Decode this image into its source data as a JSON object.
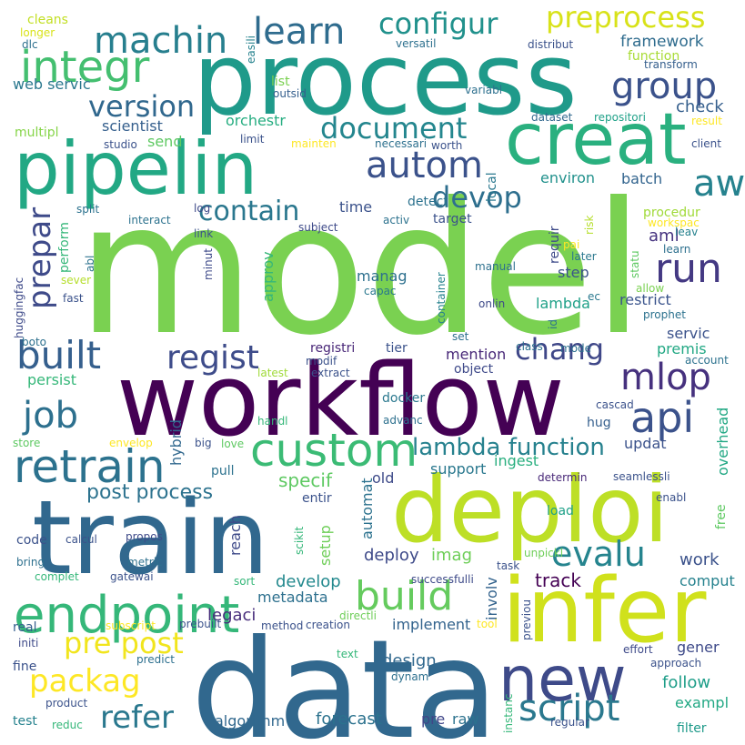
{
  "words": [
    {
      "text": "model",
      "color": "#7ad151"
    },
    {
      "text": "process",
      "color": "#1f9a8a"
    },
    {
      "text": "workflow",
      "color": "#440154"
    },
    {
      "text": "data",
      "color": "#31688e"
    },
    {
      "text": "train",
      "color": "#31688e"
    },
    {
      "text": "deploi",
      "color": "#bddf26"
    },
    {
      "text": "infer",
      "color": "#d0e11c"
    },
    {
      "text": "pipelin",
      "color": "#22a884"
    },
    {
      "text": "creat",
      "color": "#2ab07f"
    },
    {
      "text": "new",
      "color": "#3e4a89"
    },
    {
      "text": "custom",
      "color": "#3bbb75"
    },
    {
      "text": "endpoint",
      "color": "#35b779"
    },
    {
      "text": "retrain",
      "color": "#2c728e"
    },
    {
      "text": "script",
      "color": "#2a788e"
    },
    {
      "text": "integr",
      "color": "#44bf70"
    },
    {
      "text": "machin",
      "color": "#277f8e"
    },
    {
      "text": "learn",
      "color": "#2f6c8e"
    },
    {
      "text": "configur",
      "color": "#21918c"
    },
    {
      "text": "preprocess",
      "color": "#d8e219"
    },
    {
      "text": "group",
      "color": "#3b528b"
    },
    {
      "text": "autom",
      "color": "#3b528b"
    },
    {
      "text": "document",
      "color": "#24868e"
    },
    {
      "text": "version",
      "color": "#31688e"
    },
    {
      "text": "devop",
      "color": "#2e6f8e"
    },
    {
      "text": "aw",
      "color": "#26828e"
    },
    {
      "text": "run",
      "color": "#443983"
    },
    {
      "text": "contain",
      "color": "#2a778e"
    },
    {
      "text": "prepar",
      "color": "#3e4a89"
    },
    {
      "text": "built",
      "color": "#355f8d"
    },
    {
      "text": "regist",
      "color": "#3e4c8a"
    },
    {
      "text": "chang",
      "color": "#3f4788"
    },
    {
      "text": "mlop",
      "color": "#46317e"
    },
    {
      "text": "api",
      "color": "#3b528b"
    },
    {
      "text": "job",
      "color": "#2d708e"
    },
    {
      "text": "lambda function",
      "color": "#26818e"
    },
    {
      "text": "evalu",
      "color": "#25848e"
    },
    {
      "text": "build",
      "color": "#65cb5e"
    },
    {
      "text": "packag",
      "color": "#fde725"
    },
    {
      "text": "pre post",
      "color": "#f1e51d"
    },
    {
      "text": "refer",
      "color": "#2a788e"
    },
    {
      "text": "post process",
      "color": "#2c728e"
    },
    {
      "text": "specif",
      "color": "#5ec962"
    },
    {
      "text": "track",
      "color": "#440154"
    },
    {
      "text": "deploy",
      "color": "#3e4a89"
    },
    {
      "text": "imag",
      "color": "#6ece58"
    },
    {
      "text": "develop",
      "color": "#23898e"
    },
    {
      "text": "metadata",
      "color": "#2d708e"
    },
    {
      "text": "legaci",
      "color": "#472d7b"
    },
    {
      "text": "implement",
      "color": "#33638d"
    },
    {
      "text": "design",
      "color": "#31688e"
    },
    {
      "text": "algorithm",
      "color": "#31688e"
    },
    {
      "text": "forecast",
      "color": "#2c728e"
    },
    {
      "text": "follow",
      "color": "#1f9e89"
    },
    {
      "text": "work",
      "color": "#3b528b"
    },
    {
      "text": "framework",
      "color": "#2f6c8e"
    },
    {
      "text": "function",
      "color": "#a8db34"
    },
    {
      "text": "check",
      "color": "#355f8d"
    },
    {
      "text": "scientist",
      "color": "#355f8d"
    },
    {
      "text": "send",
      "color": "#5ec962"
    },
    {
      "text": "orchestr",
      "color": "#26ad81"
    },
    {
      "text": "multipl",
      "color": "#86d549"
    },
    {
      "text": "web servic",
      "color": "#2a788e"
    },
    {
      "text": "environ",
      "color": "#21918c"
    },
    {
      "text": "batch",
      "color": "#32648e"
    },
    {
      "text": "time",
      "color": "#3b528b"
    },
    {
      "text": "aml",
      "color": "#46337f"
    },
    {
      "text": "procedur",
      "color": "#a0da39"
    },
    {
      "text": "restrict",
      "color": "#3a548c"
    },
    {
      "text": "servic",
      "color": "#3b528b"
    },
    {
      "text": "premis",
      "color": "#22a884"
    },
    {
      "text": "step",
      "color": "#3b528b"
    },
    {
      "text": "manag",
      "color": "#2d708e"
    },
    {
      "text": "lambda",
      "color": "#1fa188"
    },
    {
      "text": "mention",
      "color": "#482878"
    },
    {
      "text": "object",
      "color": "#3e4989"
    },
    {
      "text": "tier",
      "color": "#3b528b"
    },
    {
      "text": "registri",
      "color": "#482677"
    },
    {
      "text": "persist",
      "color": "#35b779"
    },
    {
      "text": "hybrid",
      "color": "#31688e"
    },
    {
      "text": "docker",
      "color": "#2a788e"
    },
    {
      "text": "advanc",
      "color": "#2d708e"
    },
    {
      "text": "hug",
      "color": "#355f8d"
    },
    {
      "text": "updat",
      "color": "#3b528b"
    },
    {
      "text": "ingest",
      "color": "#29af7f"
    },
    {
      "text": "support",
      "color": "#2a788e"
    },
    {
      "text": "old",
      "color": "#3e4a89"
    },
    {
      "text": "entir",
      "color": "#3b528b"
    },
    {
      "text": "automat",
      "color": "#2c728e"
    },
    {
      "text": "setup",
      "color": "#6ece58"
    },
    {
      "text": "reach",
      "color": "#3e4a89"
    },
    {
      "text": "code",
      "color": "#3b528b"
    },
    {
      "text": "real",
      "color": "#355f8d"
    },
    {
      "text": "fine",
      "color": "#3b528b"
    },
    {
      "text": "test",
      "color": "#26828e"
    },
    {
      "text": "raw",
      "color": "#2c728e"
    },
    {
      "text": "pre",
      "color": "#404688"
    },
    {
      "text": "involv",
      "color": "#33638d"
    },
    {
      "text": "comput",
      "color": "#26828e"
    },
    {
      "text": "gener",
      "color": "#3e4a89"
    },
    {
      "text": "exampl",
      "color": "#22a884"
    },
    {
      "text": "filter",
      "color": "#1f9a8a"
    },
    {
      "text": "overhead",
      "color": "#22a884"
    },
    {
      "text": "enabl",
      "color": "#3b528b"
    },
    {
      "text": "free",
      "color": "#5ec962"
    },
    {
      "text": "cascad",
      "color": "#3b528b"
    },
    {
      "text": "determin",
      "color": "#482878"
    },
    {
      "text": "seamlessli",
      "color": "#3b528b"
    },
    {
      "text": "load",
      "color": "#1fa188"
    },
    {
      "text": "target",
      "color": "#3b528b"
    },
    {
      "text": "requir",
      "color": "#3e4a89"
    },
    {
      "text": "detect",
      "color": "#2c728e"
    },
    {
      "text": "local",
      "color": "#2a788e"
    },
    {
      "text": "perform",
      "color": "#35b779"
    },
    {
      "text": "approv",
      "color": "#35b779"
    },
    {
      "text": "capac",
      "color": "#2a788e"
    },
    {
      "text": "container",
      "color": "#26828e"
    },
    {
      "text": "onlin",
      "color": "#3e4a89"
    },
    {
      "text": "manual",
      "color": "#2d708e"
    },
    {
      "text": "id",
      "color": "#2c728e"
    },
    {
      "text": "ec",
      "color": "#2a788e"
    },
    {
      "text": "statu",
      "color": "#5ec962"
    },
    {
      "text": "risk",
      "color": "#b5de2b"
    },
    {
      "text": "pai",
      "color": "#fde725"
    },
    {
      "text": "later",
      "color": "#2a788e"
    },
    {
      "text": "leav",
      "color": "#26828e"
    },
    {
      "text": "learn",
      "color": "#2d708e"
    },
    {
      "text": "allow",
      "color": "#7ad151"
    },
    {
      "text": "prophet",
      "color": "#2c728e"
    },
    {
      "text": "account",
      "color": "#2c728e"
    },
    {
      "text": "workspac",
      "color": "#fde725"
    },
    {
      "text": "cleans",
      "color": "#c2df23"
    },
    {
      "text": "longer",
      "color": "#d8e219"
    },
    {
      "text": "dlc",
      "color": "#2d708e"
    },
    {
      "text": "easili",
      "color": "#26828e"
    },
    {
      "text": "versatil",
      "color": "#2d708e"
    },
    {
      "text": "distribut",
      "color": "#3b528b"
    },
    {
      "text": "transform",
      "color": "#355f8d"
    },
    {
      "text": "list",
      "color": "#7ad151"
    },
    {
      "text": "outsid",
      "color": "#355f8d"
    },
    {
      "text": "variabl",
      "color": "#2d708e"
    },
    {
      "text": "dataset",
      "color": "#31688e"
    },
    {
      "text": "repositori",
      "color": "#1fa188"
    },
    {
      "text": "result",
      "color": "#fde725"
    },
    {
      "text": "client",
      "color": "#3b528b"
    },
    {
      "text": "studio",
      "color": "#3b528b"
    },
    {
      "text": "limit",
      "color": "#3b528b"
    },
    {
      "text": "mainten",
      "color": "#fde725"
    },
    {
      "text": "necessari",
      "color": "#2d708e"
    },
    {
      "text": "worth",
      "color": "#3b528b"
    },
    {
      "text": "split",
      "color": "#2c728e"
    },
    {
      "text": "interact",
      "color": "#2c728e"
    },
    {
      "text": "log",
      "color": "#3e4a89"
    },
    {
      "text": "subject",
      "color": "#3e4a89"
    },
    {
      "text": "activ",
      "color": "#2c728e"
    },
    {
      "text": "link",
      "color": "#3b528b"
    },
    {
      "text": "abl",
      "color": "#2c728e"
    },
    {
      "text": "huggingfac",
      "color": "#3e4a89"
    },
    {
      "text": "minut",
      "color": "#3e4a89"
    },
    {
      "text": "sever",
      "color": "#b5de2b"
    },
    {
      "text": "fast",
      "color": "#3b528b"
    },
    {
      "text": "boto",
      "color": "#2d708e"
    },
    {
      "text": "set",
      "color": "#2d708e"
    },
    {
      "text": "class",
      "color": "#2d708e"
    },
    {
      "text": "mode",
      "color": "#2d708e"
    },
    {
      "text": "latest",
      "color": "#a0da39"
    },
    {
      "text": "extract",
      "color": "#3b528b"
    },
    {
      "text": "modif",
      "color": "#3b528b"
    },
    {
      "text": "handl",
      "color": "#35b779"
    },
    {
      "text": "store",
      "color": "#5ec962"
    },
    {
      "text": "envelop",
      "color": "#fde725"
    },
    {
      "text": "big",
      "color": "#3b528b"
    },
    {
      "text": "love",
      "color": "#5ec962"
    },
    {
      "text": "pull",
      "color": "#2c728e"
    },
    {
      "text": "calcul",
      "color": "#3b528b"
    },
    {
      "text": "propos",
      "color": "#3e4a89"
    },
    {
      "text": "scikit",
      "color": "#35b779"
    },
    {
      "text": "metric",
      "color": "#2d708e"
    },
    {
      "text": "bring",
      "color": "#2d708e"
    },
    {
      "text": "gatewai",
      "color": "#3b528b"
    },
    {
      "text": "complet",
      "color": "#35b779"
    },
    {
      "text": "sort",
      "color": "#35b779"
    },
    {
      "text": "subscript",
      "color": "#fde725"
    },
    {
      "text": "prebuilt",
      "color": "#3b528b"
    },
    {
      "text": "method",
      "color": "#3b528b"
    },
    {
      "text": "creation",
      "color": "#3b528b"
    },
    {
      "text": "directli",
      "color": "#6ece58"
    },
    {
      "text": "tool",
      "color": "#fde725"
    },
    {
      "text": "successfulli",
      "color": "#3e4a89"
    },
    {
      "text": "task",
      "color": "#3b528b"
    },
    {
      "text": "unpickl",
      "color": "#6ece58"
    },
    {
      "text": "previou",
      "color": "#3b528b"
    },
    {
      "text": "initi",
      "color": "#3e4a89"
    },
    {
      "text": "predict",
      "color": "#2d708e"
    },
    {
      "text": "text",
      "color": "#35b779"
    },
    {
      "text": "dynam",
      "color": "#2d708e"
    },
    {
      "text": "effort",
      "color": "#3e4a89"
    },
    {
      "text": "approach",
      "color": "#3b528b"
    },
    {
      "text": "product",
      "color": "#3b528b"
    },
    {
      "text": "reduc",
      "color": "#35b779"
    },
    {
      "text": "instanc",
      "color": "#35b779"
    },
    {
      "text": "regular",
      "color": "#3b528b"
    }
  ]
}
